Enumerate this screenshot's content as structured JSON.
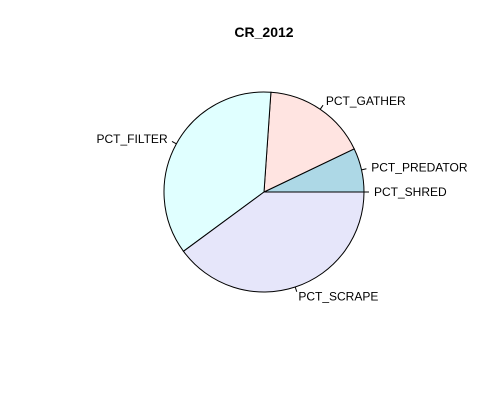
{
  "chart_data": {
    "type": "pie",
    "title": "CR_2012",
    "start_angle_deg": 0,
    "direction": "counterclockwise",
    "slices": [
      {
        "label": "PCT_SHRED",
        "value": 0.0,
        "color": "#ffffff"
      },
      {
        "label": "PCT_PREDATOR",
        "value": 7.1,
        "color": "#add8e6"
      },
      {
        "label": "PCT_GATHER",
        "value": 16.8,
        "color": "#ffe4e1"
      },
      {
        "label": "PCT_FILTER",
        "value": 36.2,
        "color": "#e0ffff"
      },
      {
        "label": "PCT_SCRAPE",
        "value": 39.9,
        "color": "#e6e6fa"
      }
    ]
  }
}
